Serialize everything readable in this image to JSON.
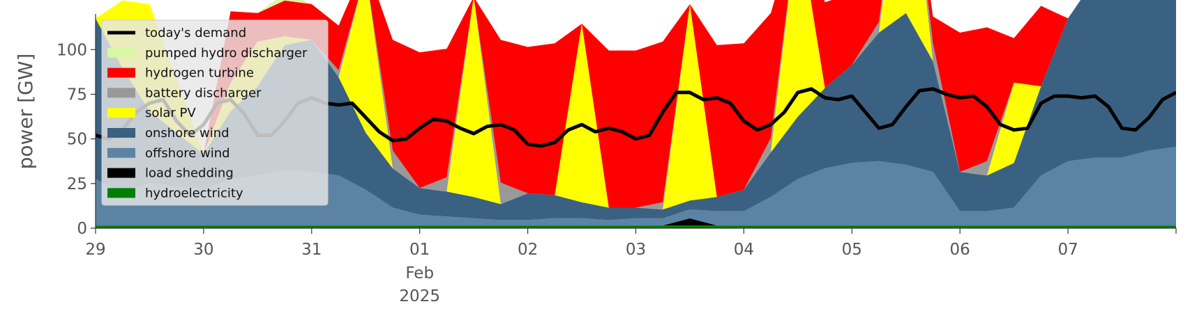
{
  "chart_data": {
    "type": "area",
    "ylabel": "power [GW]",
    "xlabel": "",
    "ylim": [
      0,
      120
    ],
    "y_ticks": [
      0,
      25,
      50,
      75,
      100
    ],
    "x_range_days": [
      0,
      10
    ],
    "x_tick_labels": [
      "29",
      "30",
      "31",
      "01",
      "02",
      "03",
      "04",
      "05",
      "06",
      "07"
    ],
    "x_month_label": "Feb",
    "x_year_label": "2025",
    "grid": false,
    "legend_position": "top-left",
    "legend": [
      {
        "name": "today's demand",
        "kind": "line",
        "color": "#000000"
      },
      {
        "name": "pumped hydro discharger",
        "kind": "patch",
        "color": "#d9f7a5"
      },
      {
        "name": "hydrogen turbine",
        "kind": "patch",
        "color": "#ff0000"
      },
      {
        "name": "battery discharger",
        "kind": "patch",
        "color": "#999999"
      },
      {
        "name": "solar PV",
        "kind": "patch",
        "color": "#ffff00"
      },
      {
        "name": "onshore wind",
        "kind": "patch",
        "color": "#3b6182"
      },
      {
        "name": "offshore wind",
        "kind": "patch",
        "color": "#5c83a4"
      },
      {
        "name": "load shedding",
        "kind": "patch",
        "color": "#000000"
      },
      {
        "name": "hydroelectricity",
        "kind": "patch",
        "color": "#008000"
      }
    ],
    "x": [
      0,
      0.25,
      0.5,
      0.75,
      1,
      1.25,
      1.5,
      1.75,
      2,
      2.25,
      2.5,
      2.75,
      3,
      3.25,
      3.5,
      3.75,
      4,
      4.25,
      4.5,
      4.75,
      5,
      5.25,
      5.5,
      5.75,
      6,
      6.25,
      6.5,
      6.75,
      7,
      7.25,
      7.5,
      7.75,
      8,
      8.25,
      8.5,
      8.75,
      9,
      9.25,
      9.5,
      9.75,
      10
    ],
    "series": [
      {
        "name": "hydroelectricity",
        "color": "#008000",
        "values": [
          1.5,
          1.5,
          1.5,
          1.5,
          1.5,
          1.5,
          1.5,
          1.5,
          1.5,
          1.5,
          1.5,
          1.5,
          1.5,
          1.5,
          1.5,
          1.5,
          1.5,
          1.5,
          1.5,
          1.5,
          1.5,
          1.5,
          1.5,
          1.5,
          1.5,
          1.5,
          1.5,
          1.5,
          1.5,
          1.5,
          1.5,
          1.5,
          1.5,
          1.5,
          1.5,
          1.5,
          1.5,
          1.5,
          1.5,
          1.5,
          1.5
        ]
      },
      {
        "name": "load shedding",
        "color": "#000000",
        "values": [
          0,
          0,
          0,
          0,
          0,
          0,
          0,
          0,
          0,
          0,
          0,
          0,
          0,
          0,
          0,
          0,
          0,
          0,
          0,
          0,
          0,
          0,
          4,
          0,
          0,
          0,
          0,
          0,
          0,
          0,
          0,
          0,
          0,
          0,
          0,
          0,
          0,
          0,
          0,
          0,
          0
        ]
      },
      {
        "name": "offshore wind",
        "color": "#5c83a4",
        "values": [
          26,
          18,
          24,
          22,
          20,
          26,
          28,
          31,
          30,
          28,
          20,
          10,
          6,
          5,
          4,
          3,
          3,
          4,
          4,
          3,
          4,
          4,
          5,
          8,
          8,
          16,
          26,
          32,
          35,
          36,
          34,
          30,
          8,
          8,
          10,
          28,
          36,
          38,
          38,
          42,
          44
        ]
      },
      {
        "name": "onshore wind",
        "color": "#3b6182",
        "values": [
          90,
          70,
          40,
          30,
          20,
          38,
          50,
          70,
          74,
          55,
          32,
          22,
          15,
          14,
          12,
          9,
          15,
          13,
          9,
          7,
          6,
          5,
          5,
          8,
          12,
          25,
          35,
          45,
          55,
          72,
          85,
          62,
          22,
          20,
          25,
          50,
          80,
          100,
          112,
          110,
          110
        ]
      },
      {
        "name": "solar PV",
        "color": "#ffff00",
        "values": [
          0,
          38,
          60,
          30,
          0,
          16,
          25,
          5,
          0,
          0,
          90,
          0,
          0,
          0,
          112,
          0,
          0,
          0,
          100,
          0,
          0,
          0,
          110,
          0,
          0,
          0,
          110,
          0,
          0,
          0,
          110,
          0,
          0,
          0,
          45,
          0,
          0,
          0,
          35,
          0,
          0
        ]
      },
      {
        "name": "battery discharger",
        "color": "#999999",
        "values": [
          0,
          0,
          0,
          0,
          0,
          0,
          0,
          0,
          0,
          4,
          0,
          10,
          0,
          8,
          0,
          12,
          0,
          0,
          0,
          0,
          0,
          4,
          0,
          0,
          0,
          8,
          0,
          0,
          0,
          6,
          0,
          10,
          0,
          8,
          0,
          0,
          0,
          0,
          0,
          0,
          0
        ]
      },
      {
        "name": "hydrogen turbine",
        "color": "#ff0000",
        "values": [
          0,
          0,
          0,
          0,
          0,
          40,
          16,
          20,
          20,
          25,
          5,
          62,
          76,
          72,
          0,
          80,
          82,
          85,
          0,
          88,
          88,
          90,
          0,
          85,
          82,
          70,
          0,
          48,
          40,
          20,
          0,
          15,
          78,
          75,
          25,
          45,
          0,
          0,
          0,
          0,
          0
        ]
      },
      {
        "name": "pumped hydro discharger",
        "color": "#d9f7a5",
        "values": [
          0,
          0,
          0,
          0,
          0,
          0,
          0,
          4,
          0,
          0,
          0,
          0,
          0,
          0,
          0,
          0,
          0,
          0,
          0,
          0,
          0,
          0,
          0,
          0,
          0,
          0,
          0,
          0,
          0,
          0,
          0,
          0,
          0,
          0,
          0,
          0,
          0,
          0,
          0,
          0,
          0
        ]
      }
    ],
    "demand": {
      "name": "today's demand",
      "color": "#000000",
      "x": [
        0,
        0.125,
        0.25,
        0.375,
        0.5,
        0.625,
        0.75,
        0.875,
        1,
        1.125,
        1.25,
        1.375,
        1.5,
        1.625,
        1.75,
        1.875,
        2,
        2.125,
        2.25,
        2.375,
        2.5,
        2.625,
        2.75,
        2.875,
        3,
        3.125,
        3.25,
        3.375,
        3.5,
        3.625,
        3.75,
        3.875,
        4,
        4.125,
        4.25,
        4.375,
        4.5,
        4.625,
        4.75,
        4.875,
        5,
        5.125,
        5.25,
        5.375,
        5.5,
        5.625,
        5.75,
        5.875,
        6,
        6.125,
        6.25,
        6.375,
        6.5,
        6.625,
        6.75,
        6.875,
        7,
        7.125,
        7.25,
        7.375,
        7.5,
        7.625,
        7.75,
        7.875,
        8,
        8.125,
        8.25,
        8.375,
        8.5,
        8.625,
        8.75,
        8.875,
        9,
        9.125,
        9.25,
        9.375,
        9.5,
        9.625,
        9.75,
        9.875,
        10
      ],
      "values": [
        52,
        50,
        55,
        65,
        70,
        72,
        60,
        52,
        58,
        70,
        72,
        64,
        52,
        52,
        60,
        70,
        73,
        70,
        69,
        70,
        62,
        54,
        49,
        50,
        56,
        61,
        60,
        56,
        53,
        57,
        58,
        55,
        47,
        46,
        48,
        55,
        58,
        54,
        56,
        54,
        50,
        52,
        65,
        76,
        76,
        72,
        73,
        70,
        60,
        55,
        58,
        65,
        76,
        78,
        73,
        72,
        74,
        65,
        56,
        58,
        68,
        77,
        78,
        75,
        73,
        74,
        68,
        58,
        55,
        56,
        70,
        74,
        74,
        73,
        74,
        68,
        56,
        55,
        62,
        72,
        76
      ]
    }
  }
}
